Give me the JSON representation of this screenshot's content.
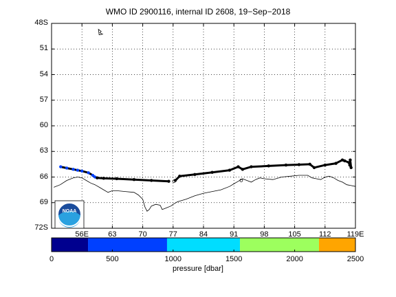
{
  "title": "WMO ID 2900116, internal ID 2608, 19−Sep−2018",
  "map": {
    "lat_ticks": [
      "48S",
      "51",
      "54",
      "57",
      "60",
      "63",
      "66",
      "69",
      "72S"
    ],
    "lon_ticks": [
      "56E",
      "63",
      "70",
      "77",
      "84",
      "91",
      "98",
      "105",
      "112",
      "119E"
    ],
    "lon_range": [
      49,
      119
    ],
    "lat_range": [
      -72,
      -48
    ],
    "grid": "dotted",
    "track_color": "#000000",
    "coast_color": "#000000",
    "logo": "NOAA",
    "logo_icon": "noaa-logo-icon"
  },
  "colorbar": {
    "ticks": [
      "0",
      "500",
      "1000",
      "1500",
      "2000",
      "2500"
    ],
    "colors": [
      "#00008f",
      "#0040ff",
      "#00ddff",
      "#9dff5e",
      "#ffa500"
    ],
    "breaks": [
      0,
      300,
      950,
      1550,
      2200,
      2500
    ],
    "label": "pressure [dbar]"
  },
  "chart_data": {
    "type": "scatter",
    "title": "WMO ID 2900116, internal ID 2608, 19−Sep−2018",
    "xlabel": "",
    "ylabel": "",
    "xlim": [
      49,
      119
    ],
    "ylim": [
      -72,
      -48
    ],
    "series": [
      {
        "x": [
          51.1,
          52.5,
          54.0,
          55.0,
          56.0,
          57.5,
          58.5,
          59.0,
          59.5,
          61.0,
          64.0,
          68.0,
          72.0,
          76.0,
          77.5,
          78.5,
          82.0,
          86.0,
          90.0,
          92.0,
          93.0,
          95.0,
          99.0,
          103.0,
          106.0,
          108.5,
          109.5,
          112.0,
          114.5,
          116.0,
          116.5,
          117.5,
          117.7,
          118.0,
          117.8
        ],
        "y": [
          -64.8,
          -64.95,
          -65.1,
          -65.2,
          -65.3,
          -65.5,
          -65.8,
          -66.0,
          -66.1,
          -66.15,
          -66.2,
          -66.3,
          -66.4,
          -66.5,
          -66.4,
          -65.9,
          -65.7,
          -65.45,
          -65.2,
          -64.8,
          -65.1,
          -64.8,
          -64.7,
          -64.6,
          -64.55,
          -64.5,
          -64.9,
          -64.6,
          -64.4,
          -64.0,
          -64.1,
          -64.3,
          -64.6,
          -64.9,
          -64.0
        ]
      }
    ],
    "grid": true
  }
}
